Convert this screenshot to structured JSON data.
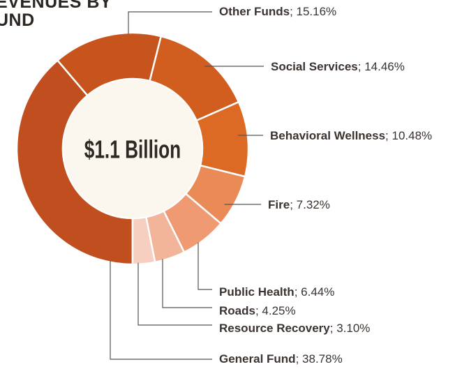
{
  "chart_data": {
    "type": "donut",
    "title_lines": [
      "EVENUES BY",
      "UND"
    ],
    "center_label": "$1.1 Billion",
    "slices": [
      {
        "name": "General Fund",
        "value": 38.78,
        "pct_label": "38.78%",
        "color": "#c04e1e"
      },
      {
        "name": "Other Funds",
        "value": 15.16,
        "pct_label": "15.16%",
        "color": "#c8541d"
      },
      {
        "name": "Social Services",
        "value": 14.46,
        "pct_label": "14.46%",
        "color": "#d15e1f"
      },
      {
        "name": "Behavioral Wellness",
        "value": 10.48,
        "pct_label": "10.48%",
        "color": "#dc6a24"
      },
      {
        "name": "Fire",
        "value": 7.32,
        "pct_label": "7.32%",
        "color": "#ea8a57"
      },
      {
        "name": "Public Health",
        "value": 6.44,
        "pct_label": "6.44%",
        "color": "#ef9a73"
      },
      {
        "name": "Roads",
        "value": 4.25,
        "pct_label": "4.25%",
        "color": "#f3b59a"
      },
      {
        "name": "Resource Recovery",
        "value": 3.1,
        "pct_label": "3.10%",
        "color": "#f6cfc0"
      }
    ],
    "colors": {
      "center_fill": "#fbf7ef",
      "center_text": "#2e2925",
      "label_text": "#3a3330",
      "leader_line": "#555555",
      "separator": "#ffffff"
    }
  }
}
